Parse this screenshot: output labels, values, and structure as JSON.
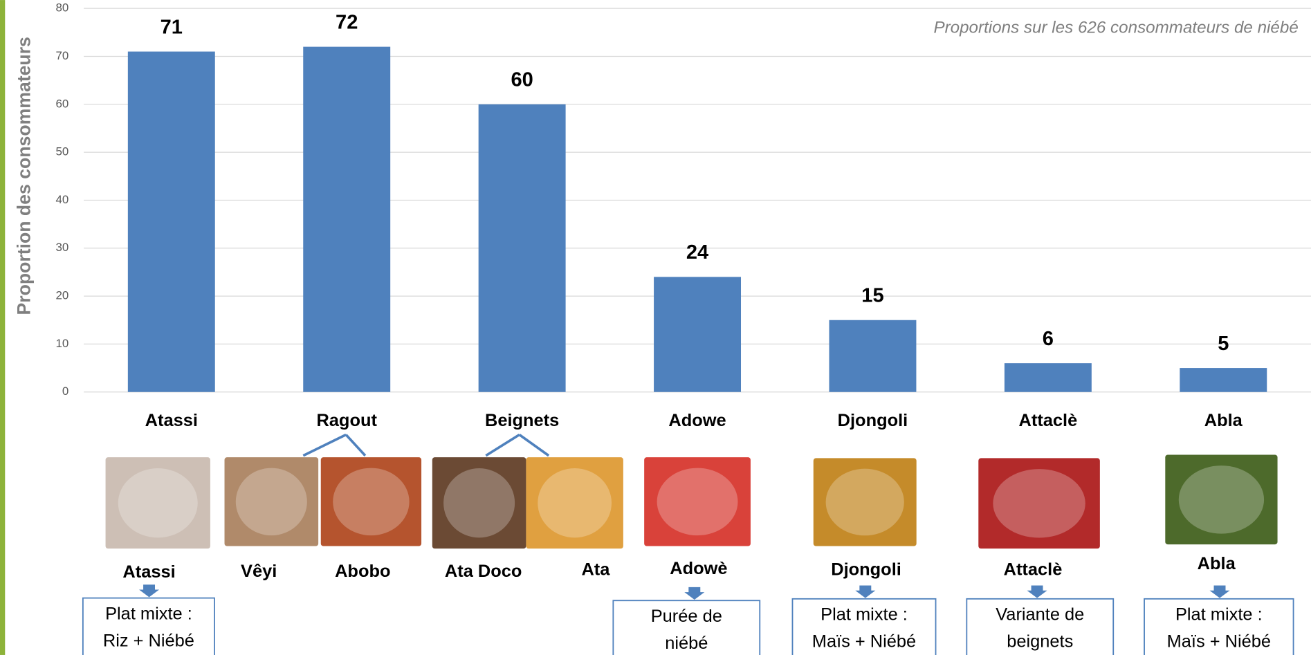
{
  "chart_data": {
    "type": "bar",
    "y_label": "Proportion des consommateurs",
    "annotation": "Proportions sur les 626 consommateurs de niébé",
    "categories": [
      "Atassi",
      "Ragout",
      "Beignets",
      "Adowe",
      "Djongoli",
      "Attaclè",
      "Abla"
    ],
    "values": [
      71,
      72,
      60,
      24,
      15,
      6,
      5
    ],
    "color": "#4f81bd",
    "ylim": [
      0,
      80
    ],
    "yticks": [
      0,
      10,
      20,
      30,
      40,
      50,
      60,
      70,
      80
    ],
    "grid": true
  },
  "photo_labels": [
    "Atassi",
    "Vêyi",
    "Abobo",
    "Ata Doco",
    "Ata",
    "Adowè",
    "Djongoli",
    "Attaclè",
    "Abla"
  ],
  "notes": [
    [
      "Plat mixte :",
      "Riz + Niébé"
    ],
    [
      "Purée de",
      "niébé"
    ],
    [
      "Plat mixte :",
      "Maïs + Niébé"
    ],
    [
      "Variante de",
      "beignets"
    ],
    [
      "Plat mixte :",
      "Maïs + Niébé"
    ]
  ]
}
